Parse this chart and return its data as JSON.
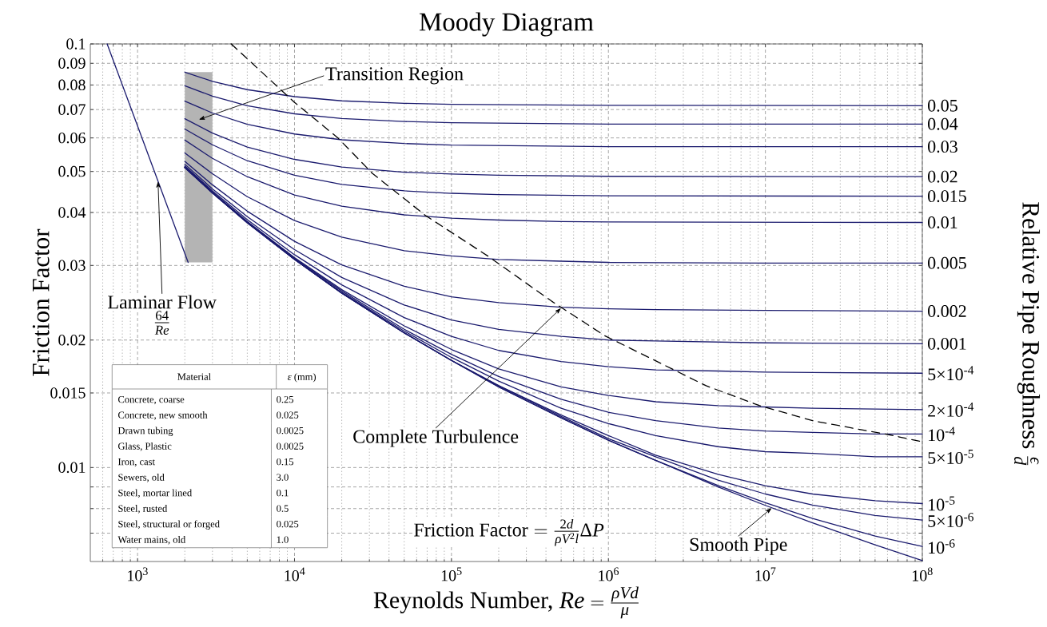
{
  "chart_data": {
    "type": "line",
    "title": "Moody Diagram",
    "xlabel": "\\text{Reynolds Number, } Re = \\frac{\\rho V d}{\\mu}",
    "ylabel": "Friction Factor",
    "log": "xy",
    "grid": true,
    "line_style": "solid",
    "xlim": [
      500,
      100000000
    ],
    "ylim": [
      0.006,
      0.1
    ],
    "xticks": [
      {
        "value": 1000,
        "label": "10$^{3}$"
      },
      {
        "value": 10000,
        "label": "10$^{4}$"
      },
      {
        "value": 100000,
        "label": "10$^{5}$"
      },
      {
        "value": 1000000,
        "label": "10$^{6}$"
      },
      {
        "value": 10000000,
        "label": "10$^{7}$"
      },
      {
        "value": 100000000,
        "label": "10$^{8}$"
      }
    ],
    "yticks": [
      {
        "value": 0.007,
        "label": null
      },
      {
        "value": 0.008,
        "label": null
      },
      {
        "value": 0.009,
        "label": null
      },
      0.01,
      0.015,
      0.02,
      0.03,
      0.04,
      0.05,
      0.06,
      0.07,
      0.08,
      0.09,
      0.1
    ],
    "series": [
      {
        "name": "0.05",
        "color": "#1b1b6e",
        "x": [
          2000,
          3000,
          5000,
          10000,
          20000,
          50000,
          100000,
          1000000,
          100000000
        ],
        "values": [
          0.0858,
          0.0816,
          0.078,
          0.0751,
          0.0734,
          0.0724,
          0.072,
          0.0716,
          0.0715
        ]
      },
      {
        "name": "0.04",
        "color": "#1b1b6e",
        "x": [
          2000,
          3000,
          5000,
          10000,
          20000,
          50000,
          100000,
          1000000,
          100000000
        ],
        "values": [
          0.0797,
          0.0753,
          0.0715,
          0.0684,
          0.0667,
          0.0656,
          0.0652,
          0.0647,
          0.0647
        ]
      },
      {
        "name": "0.03",
        "color": "#1b1b6e",
        "x": [
          2000,
          3000,
          5000,
          10000,
          20000,
          50000,
          100000,
          1000000,
          100000000
        ],
        "values": [
          0.0733,
          0.0687,
          0.0646,
          0.0613,
          0.0594,
          0.0582,
          0.0577,
          0.0572,
          0.0572
        ]
      },
      {
        "name": "0.02",
        "color": "#1b1b6e",
        "x": [
          2000,
          3000,
          5000,
          10000,
          20000,
          50000,
          100000,
          200000,
          1000000,
          100000000
        ],
        "values": [
          0.0666,
          0.0616,
          0.0571,
          0.0534,
          0.0512,
          0.0498,
          0.0493,
          0.049,
          0.0487,
          0.0486
        ]
      },
      {
        "name": "0.015",
        "color": "#1b1b6e",
        "x": [
          2000,
          3000,
          5000,
          10000,
          20000,
          50000,
          100000,
          200000,
          1000000,
          100000000
        ],
        "values": [
          0.063,
          0.0578,
          0.053,
          0.049,
          0.0466,
          0.045,
          0.0444,
          0.0441,
          0.0438,
          0.0437
        ]
      },
      {
        "name": "0.01",
        "color": "#1b1b6e",
        "x": [
          2000,
          3000,
          5000,
          10000,
          20000,
          50000,
          100000,
          200000,
          500000,
          1000000,
          100000000
        ],
        "values": [
          0.0593,
          0.0537,
          0.0486,
          0.044,
          0.0414,
          0.0395,
          0.0388,
          0.0384,
          0.0381,
          0.038,
          0.0379
        ]
      },
      {
        "name": "0.005",
        "color": "#1b1b6e",
        "x": [
          2000,
          3000,
          5000,
          10000,
          20000,
          50000,
          100000,
          200000,
          500000,
          1000000,
          10000000,
          100000000
        ],
        "values": [
          0.0553,
          0.0494,
          0.0436,
          0.0383,
          0.035,
          0.0325,
          0.0316,
          0.031,
          0.0307,
          0.0305,
          0.0304,
          0.0304
        ]
      },
      {
        "name": "0.002",
        "color": "#1b1b6e",
        "x": [
          2000,
          3000,
          5000,
          10000,
          20000,
          50000,
          100000,
          200000,
          500000,
          1000000,
          2000000,
          10000000,
          100000000
        ],
        "values": [
          0.0528,
          0.0465,
          0.0403,
          0.0342,
          0.0301,
          0.0268,
          0.0253,
          0.0245,
          0.0239,
          0.0237,
          0.0236,
          0.0235,
          0.0234
        ]
      },
      {
        "name": "0.001",
        "color": "#1b1b6e",
        "x": [
          2000,
          3000,
          5000,
          10000,
          20000,
          50000,
          100000,
          200000,
          500000,
          1000000,
          2000000,
          10000000,
          100000000
        ],
        "values": [
          0.052,
          0.0455,
          0.0391,
          0.0327,
          0.0281,
          0.0242,
          0.0223,
          0.0212,
          0.0204,
          0.02,
          0.0199,
          0.0197,
          0.0196
        ]
      },
      {
        "name": "5×10$^{-4}$",
        "color": "#1b1b6e",
        "x": [
          2000,
          3000,
          5000,
          10000,
          20000,
          50000,
          100000,
          200000,
          500000,
          1000000,
          2000000,
          5000000,
          10000000,
          100000000
        ],
        "values": [
          0.0515,
          0.045,
          0.0385,
          0.0318,
          0.027,
          0.0226,
          0.0204,
          0.0189,
          0.0178,
          0.0173,
          0.017,
          0.0169,
          0.0168,
          0.0167
        ]
      },
      {
        "name": "2×10$^{-4}$",
        "color": "#1b1b6e",
        "x": [
          2000,
          3000,
          5000,
          10000,
          20000,
          50000,
          100000,
          200000,
          500000,
          1000000,
          2000000,
          5000000,
          10000000,
          20000000,
          100000000
        ],
        "values": [
          0.0513,
          0.0447,
          0.0381,
          0.0313,
          0.0263,
          0.0216,
          0.019,
          0.0171,
          0.0155,
          0.0148,
          0.0143,
          0.014,
          0.0139,
          0.0138,
          0.0137
        ]
      },
      {
        "name": "10$^{-4}$",
        "color": "#1b1b6e",
        "x": [
          2000,
          3000,
          5000,
          10000,
          20000,
          50000,
          100000,
          200000,
          500000,
          1000000,
          2000000,
          5000000,
          10000000,
          20000000,
          50000000,
          100000000
        ],
        "values": [
          0.0512,
          0.0446,
          0.038,
          0.0312,
          0.0261,
          0.0212,
          0.0185,
          0.0164,
          0.0145,
          0.0135,
          0.0129,
          0.0124,
          0.0122,
          0.0121,
          0.012,
          0.012
        ]
      },
      {
        "name": "5×10$^{-5}$",
        "color": "#1b1b6e",
        "x": [
          2000,
          3000,
          5000,
          10000,
          20000,
          50000,
          100000,
          200000,
          500000,
          1000000,
          2000000,
          5000000,
          10000000,
          20000000,
          50000000,
          100000000
        ],
        "values": [
          0.0511,
          0.0445,
          0.0379,
          0.0311,
          0.0259,
          0.021,
          0.0182,
          0.016,
          0.0138,
          0.0127,
          0.0119,
          0.0112,
          0.0109,
          0.0108,
          0.0106,
          0.0106
        ]
      },
      {
        "name": "10$^{-5}$",
        "color": "#1b1b6e",
        "x": [
          2000,
          3000,
          5000,
          10000,
          20000,
          50000,
          100000,
          200000,
          500000,
          1000000,
          2000000,
          5000000,
          10000000,
          20000000,
          50000000,
          100000000
        ],
        "values": [
          0.0511,
          0.0445,
          0.0379,
          0.031,
          0.0258,
          0.0208,
          0.0179,
          0.0156,
          0.0133,
          0.0119,
          0.0107,
          0.00964,
          0.00906,
          0.00866,
          0.00835,
          0.00822
        ]
      },
      {
        "name": "5×10$^{-6}$",
        "color": "#1b1b6e",
        "x": [
          2000,
          3000,
          5000,
          10000,
          20000,
          50000,
          100000,
          200000,
          500000,
          1000000,
          2000000,
          5000000,
          10000000,
          20000000,
          50000000,
          100000000
        ],
        "values": [
          0.0511,
          0.0445,
          0.0379,
          0.031,
          0.0258,
          0.0208,
          0.0179,
          0.0156,
          0.0132,
          0.0117,
          0.0106,
          0.00934,
          0.00866,
          0.00815,
          0.00771,
          0.00752
        ]
      },
      {
        "name": "10$^{-6}$",
        "color": "#1b1b6e",
        "x": [
          2000,
          3000,
          5000,
          10000,
          20000,
          50000,
          100000,
          200000,
          500000,
          1000000,
          2000000,
          5000000,
          10000000,
          20000000,
          50000000,
          100000000
        ],
        "values": [
          0.0511,
          0.0445,
          0.0378,
          0.031,
          0.0258,
          0.0208,
          0.0179,
          0.0155,
          0.0131,
          0.0116,
          0.0104,
          0.00907,
          0.00826,
          0.00758,
          0.00689,
          0.00651
        ]
      },
      {
        "color": "#1b1b6e",
        "x": [
          2000,
          3000,
          5000,
          10000,
          20000,
          50000,
          100000,
          200000,
          500000,
          1000000,
          2000000,
          5000000,
          10000000,
          20000000,
          50000000,
          100000000
        ],
        "values": [
          0.0511,
          0.0445,
          0.0378,
          0.031,
          0.0258,
          0.0208,
          0.0179,
          0.0155,
          0.0131,
          0.0116,
          0.0104,
          0.009,
          0.00814,
          0.0074,
          0.00657,
          0.00603
        ]
      },
      {
        "color": "#1b1b6e",
        "x": [
          640,
          1000,
          2100
        ],
        "values": [
          0.1,
          0.064,
          0.0305
        ]
      },
      {
        "color": "#000000",
        "line_style": "dashed",
        "x": [
          3950,
          10000,
          18900,
          31300,
          68700,
          170000,
          435000,
          942000,
          4190000,
          9200000,
          20000000,
          65000000,
          100000000
        ],
        "values": [
          0.1,
          0.0728,
          0.06,
          0.0495,
          0.0393,
          0.0316,
          0.0247,
          0.0205,
          0.0156,
          0.014,
          0.0129,
          0.0119,
          0.0115
        ]
      }
    ],
    "bands": [
      {
        "axis": "x",
        "from": 2000,
        "to": 3000,
        "label": "Transition Region",
        "color": "#b4b4b4"
      }
    ],
    "annotations": [
      {
        "text": "Laminar Flow",
        "x": 1350,
        "y": 0.0474
      },
      "\\frac{64}{Re}",
      {
        "text": "Complete Turbulence",
        "x": 500000,
        "y": 0.0238
      },
      {
        "text": "Smooth Pipe",
        "x": 11000000,
        "y": 0.00803
      },
      "\\text{Friction Factor} = \\frac{2d}{\\rho V^2 l}\\Delta P",
      "\\text{Relative Pipe Roughness } \\frac{\\varepsilon}{d}",
      "Material",
      "*ε* (mm)",
      "Concrete, coarse",
      "0.25",
      "Concrete, new smooth",
      "0.025",
      "Drawn tubing",
      "0.0025",
      "Glass, Plastic",
      "0.0025",
      "Iron, cast",
      "0.15",
      "Sewers, old",
      "3.0",
      "Steel, mortar lined",
      "0.1",
      "Steel, rusted",
      "0.5",
      "Steel, structural or forged",
      "0.025",
      "Water mains, old",
      "1.0"
    ]
  }
}
